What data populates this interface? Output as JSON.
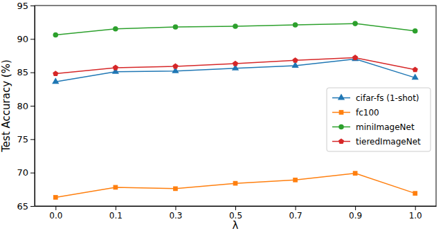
{
  "chart_data": {
    "type": "line",
    "x_label": "λ",
    "y_label": "Test Accuracy (%)",
    "categories": [
      "0.0",
      "0.1",
      "0.3",
      "0.5",
      "0.7",
      "0.9",
      "1.0"
    ],
    "ylim": [
      65,
      95
    ],
    "yticks": [
      65,
      70,
      75,
      80,
      85,
      90,
      95
    ],
    "legend": "right",
    "grid": false,
    "series": [
      {
        "name": "cifar-fs (1-shot)",
        "color": "#1f77b4",
        "marker": "triangle",
        "values": [
          83.6,
          85.1,
          85.2,
          85.6,
          86.0,
          87.0,
          84.2
        ]
      },
      {
        "name": "fc100",
        "color": "#ff7f0e",
        "marker": "square",
        "values": [
          66.3,
          67.8,
          67.6,
          68.4,
          68.9,
          69.9,
          66.9
        ]
      },
      {
        "name": "miniImageNet",
        "color": "#2ca02c",
        "marker": "circle",
        "values": [
          90.6,
          91.5,
          91.8,
          91.9,
          92.1,
          92.3,
          91.2
        ]
      },
      {
        "name": "tieredImageNet",
        "color": "#d62728",
        "marker": "pentagon",
        "values": [
          84.8,
          85.7,
          85.9,
          86.3,
          86.8,
          87.2,
          85.4
        ]
      }
    ]
  }
}
